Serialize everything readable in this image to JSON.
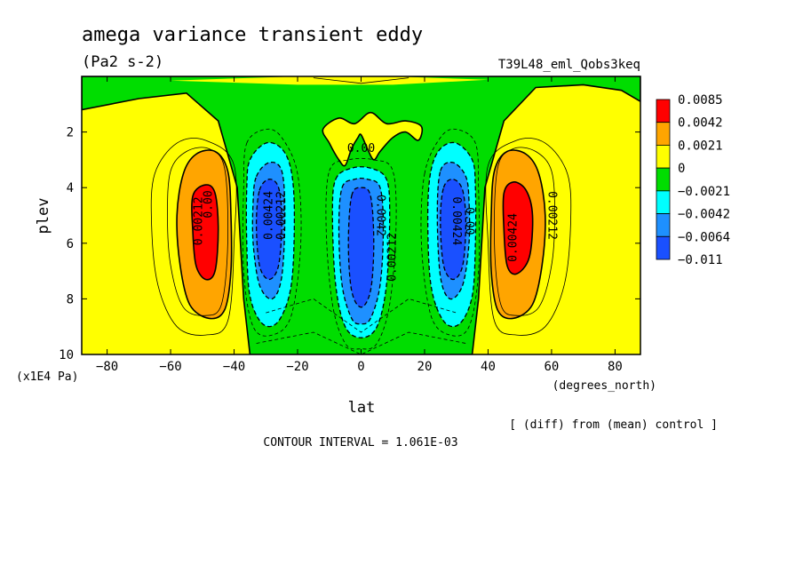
{
  "header": {
    "title": "amega variance transient eddy",
    "units": "(Pa2 s-2)",
    "experiment": "T39L48_eml_Qobs3keq"
  },
  "footer": {
    "note": "[ (diff) from (mean) control ]",
    "contour_interval": "CONTOUR INTERVAL = 1.061E-03"
  },
  "colors": {
    "red": "#ff0000",
    "orange": "#ffa500",
    "yellow": "#ffff00",
    "green": "#00dd00",
    "cyan": "#00ffff",
    "lightblue": "#1e90ff",
    "blue": "#1a50ff"
  },
  "chart_data": {
    "type": "heatmap",
    "subtype": "filled-contour",
    "xlabel": "lat",
    "xunit": "(degrees_north)",
    "ylabel": "plev",
    "yunit": "(x1E4 Pa)",
    "xlim": [
      -88,
      88
    ],
    "ylim": [
      10,
      0
    ],
    "x_ticks": [
      -80,
      -60,
      -40,
      -20,
      0,
      20,
      40,
      60,
      80
    ],
    "y_ticks": [
      2,
      4,
      6,
      8,
      10
    ],
    "legend": {
      "placement": "right",
      "labels": [
        "0.0085",
        "0.0042",
        "0.0021",
        "0",
        "−0.0021",
        "−0.0042",
        "−0.0064",
        "−0.011"
      ],
      "swatches": [
        "red",
        "orange",
        "yellow",
        "green",
        "cyan",
        "lightblue",
        "blue"
      ]
    },
    "contour_labels": [
      {
        "text": "0.00212",
        "lat": -51,
        "plev": 5.2,
        "rotate": -90
      },
      {
        "text": "0.00",
        "lat": -48,
        "plev": 4.6,
        "rotate": -90
      },
      {
        "text": "0.00424",
        "lat": -29,
        "plev": 5.0,
        "rotate": -90
      },
      {
        "text": "0.00212",
        "lat": -25,
        "plev": 5.0,
        "rotate": -90
      },
      {
        "text": "0.00",
        "lat": 0,
        "plev": 2.6,
        "rotate": 0
      },
      {
        "text": "0.0042",
        "lat": 6,
        "plev": 5.0,
        "rotate": 90
      },
      {
        "text": "0.00212",
        "lat": 10,
        "plev": 6.5,
        "rotate": -90
      },
      {
        "text": "0.00424",
        "lat": 30,
        "plev": 5.2,
        "rotate": 90
      },
      {
        "text": "0.00",
        "lat": 34,
        "plev": 5.2,
        "rotate": 90
      },
      {
        "text": "0.00424",
        "lat": 48,
        "plev": 5.8,
        "rotate": -90
      },
      {
        "text": "0.00212",
        "lat": 60,
        "plev": 5.0,
        "rotate": 90
      }
    ],
    "regions": [
      {
        "name": "background",
        "level": "yellow",
        "pts": [
          [
            -88,
            0
          ],
          [
            88,
            0
          ],
          [
            88,
            10
          ],
          [
            -88,
            10
          ]
        ]
      },
      {
        "name": "central-green",
        "level": "green",
        "pts": [
          [
            -88,
            0
          ],
          [
            -88,
            1.2
          ],
          [
            -70,
            0.8
          ],
          [
            -55,
            0.6
          ],
          [
            -45,
            1.6
          ],
          [
            -39,
            4
          ],
          [
            -37,
            8
          ],
          [
            -35,
            10
          ],
          [
            35,
            10
          ],
          [
            37,
            8
          ],
          [
            39,
            4
          ],
          [
            45,
            1.6
          ],
          [
            55,
            0.4
          ],
          [
            70,
            0.3
          ],
          [
            82,
            0.5
          ],
          [
            88,
            0.9
          ],
          [
            88,
            0
          ]
        ]
      },
      {
        "name": "top-center-yellow",
        "level": "yellow",
        "pts": [
          [
            -12,
            1.9
          ],
          [
            -10,
            2.4
          ],
          [
            -7,
            3.0
          ],
          [
            -5,
            3.2
          ],
          [
            -3,
            2.6
          ],
          [
            -1,
            2.2
          ],
          [
            0,
            2.1
          ],
          [
            2,
            2.6
          ],
          [
            4,
            3.0
          ],
          [
            6,
            2.7
          ],
          [
            10,
            2.2
          ],
          [
            14,
            2.0
          ],
          [
            18,
            2.3
          ],
          [
            19,
            1.8
          ],
          [
            14,
            1.6
          ],
          [
            8,
            1.7
          ],
          [
            3,
            1.3
          ],
          [
            -2,
            1.7
          ],
          [
            -7,
            1.5
          ]
        ]
      },
      {
        "name": "top-strip",
        "level": "yellow",
        "pts": [
          [
            -60,
            0.15
          ],
          [
            -20,
            0.0
          ],
          [
            10,
            0.0
          ],
          [
            40,
            0.12
          ],
          [
            10,
            0.3
          ],
          [
            -20,
            0.3
          ]
        ]
      },
      {
        "name": "west-orange",
        "level": "orange",
        "pts": [
          [
            -56,
            3.5
          ],
          [
            -52,
            2.8
          ],
          [
            -46,
            2.7
          ],
          [
            -42,
            3.4
          ],
          [
            -41,
            5.0
          ],
          [
            -41,
            7.0
          ],
          [
            -43,
            8.4
          ],
          [
            -48,
            8.7
          ],
          [
            -54,
            8.2
          ],
          [
            -57,
            6.8
          ],
          [
            -58,
            5.0
          ]
        ]
      },
      {
        "name": "west-red",
        "level": "red",
        "pts": [
          [
            -53,
            4.3
          ],
          [
            -49,
            3.9
          ],
          [
            -46,
            4.2
          ],
          [
            -45,
            5.5
          ],
          [
            -46,
            7.0
          ],
          [
            -49,
            7.3
          ],
          [
            -52,
            6.8
          ],
          [
            -53,
            5.6
          ]
        ]
      },
      {
        "name": "east-orange",
        "level": "orange",
        "pts": [
          [
            42,
            3.4
          ],
          [
            46,
            2.7
          ],
          [
            52,
            2.8
          ],
          [
            56,
            3.5
          ],
          [
            58,
            5.0
          ],
          [
            57,
            6.8
          ],
          [
            54,
            8.2
          ],
          [
            48,
            8.7
          ],
          [
            43,
            8.4
          ],
          [
            41,
            7.0
          ],
          [
            41,
            5.0
          ]
        ]
      },
      {
        "name": "east-red",
        "level": "red",
        "pts": [
          [
            45,
            4.2
          ],
          [
            48,
            3.8
          ],
          [
            52,
            4.1
          ],
          [
            54,
            5.0
          ],
          [
            53,
            6.5
          ],
          [
            49,
            7.1
          ],
          [
            46,
            6.8
          ],
          [
            45,
            5.5
          ]
        ]
      },
      {
        "name": "cyan-west",
        "level": "cyan",
        "pts": [
          [
            -35,
            3.0
          ],
          [
            -30,
            2.4
          ],
          [
            -25,
            2.6
          ],
          [
            -22,
            3.4
          ],
          [
            -21,
            5.0
          ],
          [
            -22,
            7.5
          ],
          [
            -26,
            8.8
          ],
          [
            -31,
            8.9
          ],
          [
            -35,
            7.9
          ],
          [
            -36,
            6.0
          ],
          [
            -36,
            4.0
          ]
        ]
      },
      {
        "name": "cyan-center",
        "level": "cyan",
        "pts": [
          [
            -8,
            3.7
          ],
          [
            -3,
            3.3
          ],
          [
            3,
            3.3
          ],
          [
            8,
            3.7
          ],
          [
            9,
            5.0
          ],
          [
            8,
            7.5
          ],
          [
            5,
            9.0
          ],
          [
            0,
            9.4
          ],
          [
            -5,
            9.0
          ],
          [
            -8,
            7.5
          ],
          [
            -9,
            5.0
          ]
        ]
      },
      {
        "name": "cyan-east",
        "level": "cyan",
        "pts": [
          [
            22,
            3.4
          ],
          [
            25,
            2.6
          ],
          [
            30,
            2.4
          ],
          [
            35,
            3.0
          ],
          [
            36,
            4.0
          ],
          [
            36,
            6.0
          ],
          [
            35,
            7.9
          ],
          [
            31,
            8.9
          ],
          [
            26,
            8.8
          ],
          [
            22,
            7.5
          ],
          [
            21,
            5.0
          ]
        ]
      },
      {
        "name": "lb-west",
        "level": "lightblue",
        "pts": [
          [
            -33,
            3.6
          ],
          [
            -29,
            3.1
          ],
          [
            -25,
            3.4
          ],
          [
            -24,
            5.0
          ],
          [
            -25,
            7.2
          ],
          [
            -28,
            8.0
          ],
          [
            -32,
            7.5
          ],
          [
            -34,
            6.0
          ],
          [
            -34,
            4.5
          ]
        ]
      },
      {
        "name": "lb-center",
        "level": "lightblue",
        "pts": [
          [
            -6,
            4.0
          ],
          [
            -2,
            3.7
          ],
          [
            2,
            3.7
          ],
          [
            6,
            4.0
          ],
          [
            7,
            5.5
          ],
          [
            6,
            7.5
          ],
          [
            3,
            8.7
          ],
          [
            0,
            8.9
          ],
          [
            -3,
            8.7
          ],
          [
            -6,
            7.5
          ],
          [
            -7,
            5.5
          ]
        ]
      },
      {
        "name": "lb-east",
        "level": "lightblue",
        "pts": [
          [
            25,
            3.4
          ],
          [
            29,
            3.1
          ],
          [
            33,
            3.6
          ],
          [
            34,
            4.5
          ],
          [
            34,
            6.0
          ],
          [
            32,
            7.5
          ],
          [
            28,
            8.0
          ],
          [
            25,
            7.2
          ],
          [
            24,
            5.0
          ]
        ]
      },
      {
        "name": "blue-west",
        "level": "blue",
        "pts": [
          [
            -32,
            4.1
          ],
          [
            -29,
            3.7
          ],
          [
            -26,
            4.0
          ],
          [
            -25,
            5.2
          ],
          [
            -26,
            6.8
          ],
          [
            -29,
            7.3
          ],
          [
            -32,
            6.8
          ],
          [
            -33,
            5.3
          ]
        ]
      },
      {
        "name": "blue-center",
        "level": "blue",
        "pts": [
          [
            -3,
            4.3
          ],
          [
            0,
            4.0
          ],
          [
            3,
            4.3
          ],
          [
            4,
            6.0
          ],
          [
            3,
            7.7
          ],
          [
            0,
            8.3
          ],
          [
            -3,
            7.7
          ],
          [
            -4,
            6.0
          ]
        ]
      },
      {
        "name": "blue-east",
        "level": "blue",
        "pts": [
          [
            26,
            4.0
          ],
          [
            29,
            3.7
          ],
          [
            32,
            4.1
          ],
          [
            33,
            5.3
          ],
          [
            32,
            6.8
          ],
          [
            29,
            7.3
          ],
          [
            26,
            6.8
          ],
          [
            25,
            5.2
          ]
        ]
      }
    ],
    "contours": [
      {
        "style": "solid",
        "pts": [
          [
            -65,
            3.5
          ],
          [
            -58,
            2.4
          ],
          [
            -49,
            2.3
          ],
          [
            -40,
            3.2
          ],
          [
            -40,
            6.0
          ],
          [
            -42,
            8.8
          ],
          [
            -49,
            9.3
          ],
          [
            -58,
            9.0
          ],
          [
            -64,
            7.5
          ],
          [
            -66,
            5.3
          ]
        ]
      },
      {
        "style": "solid",
        "pts": [
          [
            40,
            3.2
          ],
          [
            49,
            2.3
          ],
          [
            58,
            2.4
          ],
          [
            65,
            3.5
          ],
          [
            66,
            5.3
          ],
          [
            64,
            7.5
          ],
          [
            58,
            9.0
          ],
          [
            49,
            9.3
          ],
          [
            42,
            8.8
          ],
          [
            40,
            6.0
          ]
        ]
      },
      {
        "style": "solid",
        "pts": [
          [
            -60,
            3.4
          ],
          [
            -55,
            2.7
          ],
          [
            -48,
            2.6
          ],
          [
            -43,
            3.3
          ],
          [
            -42,
            6.0
          ],
          [
            -44,
            8.2
          ],
          [
            -49,
            8.6
          ],
          [
            -56,
            8.3
          ],
          [
            -60,
            6.8
          ],
          [
            -61,
            5.0
          ]
        ]
      },
      {
        "style": "solid",
        "pts": [
          [
            43,
            3.3
          ],
          [
            48,
            2.6
          ],
          [
            55,
            2.7
          ],
          [
            60,
            3.4
          ],
          [
            61,
            5.0
          ],
          [
            60,
            6.8
          ],
          [
            56,
            8.3
          ],
          [
            49,
            8.6
          ],
          [
            44,
            8.2
          ],
          [
            42,
            6.0
          ]
        ]
      },
      {
        "style": "dashed",
        "pts": [
          [
            -36,
            2.4
          ],
          [
            -30,
            1.9
          ],
          [
            -25,
            2.2
          ],
          [
            -20,
            3.5
          ],
          [
            -19,
            6.0
          ],
          [
            -22,
            8.6
          ],
          [
            -28,
            9.3
          ],
          [
            -34,
            9.0
          ],
          [
            -37,
            7.0
          ],
          [
            -37,
            4.0
          ]
        ]
      },
      {
        "style": "dashed",
        "pts": [
          [
            20,
            3.5
          ],
          [
            25,
            2.2
          ],
          [
            30,
            1.9
          ],
          [
            36,
            2.4
          ],
          [
            37,
            4.0
          ],
          [
            37,
            7.0
          ],
          [
            34,
            9.0
          ],
          [
            28,
            9.3
          ],
          [
            22,
            8.6
          ],
          [
            19,
            6.0
          ]
        ]
      },
      {
        "style": "dashed",
        "pts": [
          [
            -10,
            3.4
          ],
          [
            -4,
            3.0
          ],
          [
            4,
            3.0
          ],
          [
            10,
            3.4
          ],
          [
            11,
            5.5
          ],
          [
            9,
            8.2
          ],
          [
            5,
            9.6
          ],
          [
            0,
            9.8
          ],
          [
            -5,
            9.6
          ],
          [
            -9,
            8.2
          ],
          [
            -11,
            5.5
          ]
        ]
      },
      {
        "style": "dashed",
        "pts": [
          [
            -30,
            8.5
          ],
          [
            -15,
            8.0
          ],
          [
            0,
            9.2
          ],
          [
            15,
            8.0
          ],
          [
            30,
            8.5
          ]
        ]
      },
      {
        "style": "dashed",
        "pts": [
          [
            -33,
            9.6
          ],
          [
            -15,
            9.2
          ],
          [
            0,
            10
          ],
          [
            15,
            9.2
          ],
          [
            33,
            9.6
          ]
        ]
      },
      {
        "style": "solid",
        "pts": [
          [
            -15,
            0.05
          ],
          [
            0,
            0.25
          ],
          [
            15,
            0.05
          ]
        ]
      }
    ]
  }
}
